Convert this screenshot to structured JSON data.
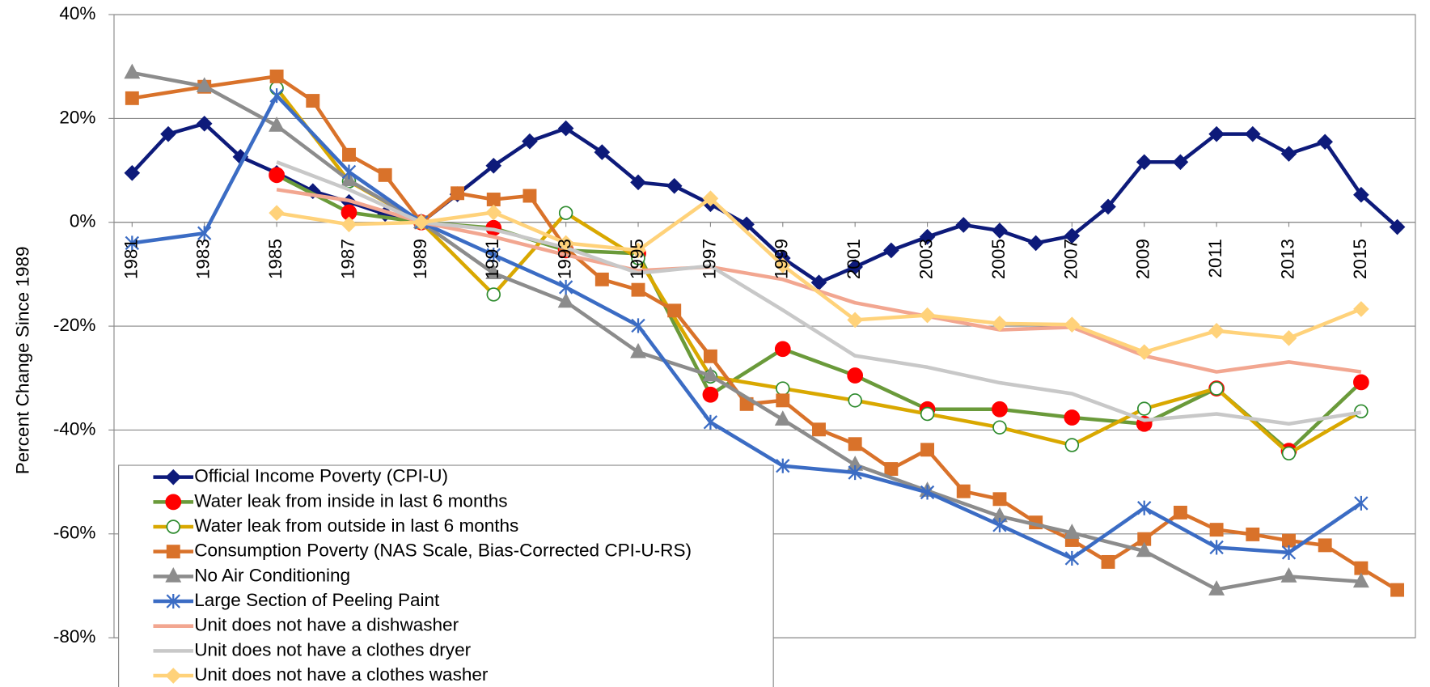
{
  "chart_data": {
    "type": "line",
    "y_label": "Percent Change Since 1989",
    "xlim": [
      1980.5,
      2016.5
    ],
    "xticks": [
      1981,
      1983,
      1985,
      1987,
      1989,
      1991,
      1993,
      1995,
      1997,
      1999,
      2001,
      2003,
      2005,
      2007,
      2009,
      2011,
      2013,
      2015
    ],
    "ylim": [
      -80,
      40
    ],
    "yticks": [
      {
        "value": -80,
        "label": "-80%"
      },
      {
        "value": -60,
        "label": "-60%"
      },
      {
        "value": -40,
        "label": "-40%"
      },
      {
        "value": -20,
        "label": "-20%"
      },
      {
        "value": 0,
        "label": "0%"
      },
      {
        "value": 20,
        "label": "20%"
      },
      {
        "value": 40,
        "label": "40%"
      }
    ],
    "grid": true,
    "legend": "lower left",
    "series": [
      {
        "name": "Official Income Poverty (CPI-U)",
        "color": "#0d1a7a",
        "marker": "diamond",
        "marker_color": "#0d1a7a",
        "marker_fill": "#0d1a7a",
        "x": [
          1981,
          1982,
          1983,
          1984,
          1985,
          1986,
          1987,
          1988,
          1989,
          1990,
          1991,
          1992,
          1993,
          1994,
          1995,
          1996,
          1997,
          1998,
          1999,
          2000,
          2001,
          2002,
          2003,
          2004,
          2005,
          2006,
          2007,
          2008,
          2009,
          2010,
          2011,
          2012,
          2013,
          2014,
          2015,
          2016
        ],
        "values": [
          9.5,
          17,
          19,
          12.6,
          9.5,
          6,
          3.9,
          1.6,
          0,
          5.4,
          10.9,
          15.6,
          18.1,
          13.5,
          7.7,
          7,
          3.5,
          -0.4,
          -6.9,
          -11.6,
          -8.6,
          -5.4,
          -2.8,
          -0.5,
          -1.6,
          -4,
          -2.6,
          3,
          11.6,
          11.6,
          17,
          17,
          13.2,
          15.5,
          5.3,
          -0.9
        ]
      },
      {
        "name": "Water leak from inside in last 6 months",
        "color": "#6a9a3a",
        "marker": "circle",
        "marker_color": "#ff0000",
        "marker_fill": "#ff0000",
        "x": [
          1985,
          1987,
          1989,
          1991,
          1993,
          1995,
          1997,
          1999,
          2001,
          2003,
          2005,
          2007,
          2009,
          2011,
          2013,
          2015
        ],
        "values": [
          9.1,
          1.9,
          0,
          -1.1,
          -5.4,
          -6,
          -33.2,
          -24.4,
          -29.5,
          -36,
          -36,
          -37.6,
          -38.8,
          -32,
          -44,
          -30.8
        ]
      },
      {
        "name": "Water leak from outside in last 6 months",
        "color": "#d9a800",
        "marker": "circle",
        "marker_color": "#2e8b2e",
        "marker_fill": "#ffffff",
        "x": [
          1985,
          1987,
          1989,
          1991,
          1993,
          1995,
          1997,
          1999,
          2001,
          2003,
          2005,
          2007,
          2009,
          2011,
          2013,
          2015
        ],
        "values": [
          25.8,
          7.9,
          0,
          -13.9,
          1.8,
          -6.9,
          -29.7,
          -32,
          -34.3,
          -36.9,
          -39.5,
          -42.9,
          -35.9,
          -32,
          -44.5,
          -36.4
        ]
      },
      {
        "name": "Consumption Poverty (NAS Scale, Bias-Corrected CPI-U-RS)",
        "color": "#d9722a",
        "marker": "square",
        "marker_color": "#d9722a",
        "marker_fill": "#d9722a",
        "x": [
          1981,
          1983,
          1985,
          1986,
          1987,
          1988,
          1989,
          1990,
          1991,
          1992,
          1993,
          1994,
          1995,
          1996,
          1997,
          1998,
          1999,
          2000,
          2001,
          2002,
          2003,
          2004,
          2005,
          2006,
          2007,
          2008,
          2009,
          2010,
          2011,
          2012,
          2013,
          2014,
          2015,
          2016
        ],
        "values": [
          23.9,
          26.1,
          28.1,
          23.4,
          13,
          9.1,
          0,
          5.6,
          4.4,
          5.1,
          -5,
          -11,
          -13,
          -17,
          -25.8,
          -35,
          -34.3,
          -39.9,
          -42.7,
          -47.5,
          -43.8,
          -51.8,
          -53.3,
          -57.8,
          -61.2,
          -65.4,
          -61,
          -55.9,
          -59.2,
          -60.1,
          -61.3,
          -62.2,
          -66.6,
          -70.8
        ]
      },
      {
        "name": "No Air Conditioning",
        "color": "#8c8c8c",
        "marker": "triangle",
        "marker_color": "#8c8c8c",
        "marker_fill": "#8c8c8c",
        "x": [
          1981,
          1983,
          1985,
          1987,
          1989,
          1991,
          1993,
          1995,
          1997,
          1999,
          2001,
          2003,
          2005,
          2007,
          2009,
          2011,
          2013,
          2015
        ],
        "values": [
          28.8,
          26.2,
          18.6,
          8.1,
          0,
          -9.8,
          -15.3,
          -25,
          -29.5,
          -38,
          -46.7,
          -51.7,
          -56.6,
          -59.8,
          -63.3,
          -70.7,
          -68.2,
          -69.2
        ]
      },
      {
        "name": "Large Section of Peeling Paint",
        "color": "#3b6cc4",
        "marker": "star",
        "marker_color": "#3b6cc4",
        "marker_fill": "none",
        "x": [
          1981,
          1983,
          1985,
          1987,
          1989,
          1991,
          1993,
          1995,
          1997,
          1999,
          2001,
          2003,
          2005,
          2007,
          2009,
          2011,
          2013,
          2015
        ],
        "values": [
          -4,
          -2.1,
          24.4,
          9.7,
          0,
          -6.3,
          -12.5,
          -19.9,
          -38.5,
          -46.9,
          -48.2,
          -52,
          -58.3,
          -64.7,
          -55,
          -62.6,
          -63.6,
          -54.1
        ]
      },
      {
        "name": "Unit does not have a dishwasher",
        "color": "#f2a690",
        "marker": "none",
        "marker_color": "#f2a690",
        "marker_fill": "none",
        "x": [
          1985,
          1987,
          1989,
          1991,
          1993,
          1995,
          1997,
          1999,
          2001,
          2003,
          2005,
          2007,
          2009,
          2011,
          2013,
          2015
        ],
        "values": [
          6.3,
          4.2,
          0,
          -2.8,
          -6.3,
          -9.3,
          -8.6,
          -11,
          -15.5,
          -18.1,
          -20.7,
          -20.2,
          -25.7,
          -28.8,
          -26.9,
          -28.8
        ]
      },
      {
        "name": "Unit does not have a clothes dryer",
        "color": "#c8c8c8",
        "marker": "none",
        "marker_color": "#c8c8c8",
        "marker_fill": "none",
        "x": [
          1985,
          1987,
          1989,
          1991,
          1993,
          1995,
          1997,
          1999,
          2001,
          2003,
          2005,
          2007,
          2009,
          2011,
          2013,
          2015
        ],
        "values": [
          11.6,
          6.3,
          0,
          -1.4,
          -4.9,
          -9.8,
          -8.4,
          -16.9,
          -25.7,
          -27.9,
          -30.9,
          -33,
          -38.1,
          -36.9,
          -38.8,
          -36.6
        ]
      },
      {
        "name": "Unit does not have a clothes washer",
        "color": "#ffd27a",
        "marker": "diamond",
        "marker_color": "#ffd27a",
        "marker_fill": "#ffd27a",
        "x": [
          1985,
          1987,
          1989,
          1991,
          1993,
          1995,
          1997,
          1999,
          2001,
          2003,
          2005,
          2007,
          2009,
          2011,
          2013,
          2015
        ],
        "values": [
          1.8,
          -0.4,
          0,
          1.9,
          -4,
          -5.4,
          4.6,
          -8.3,
          -18.8,
          -17.9,
          -19.5,
          -19.7,
          -25,
          -20.9,
          -22.3,
          -16.7
        ]
      }
    ]
  }
}
